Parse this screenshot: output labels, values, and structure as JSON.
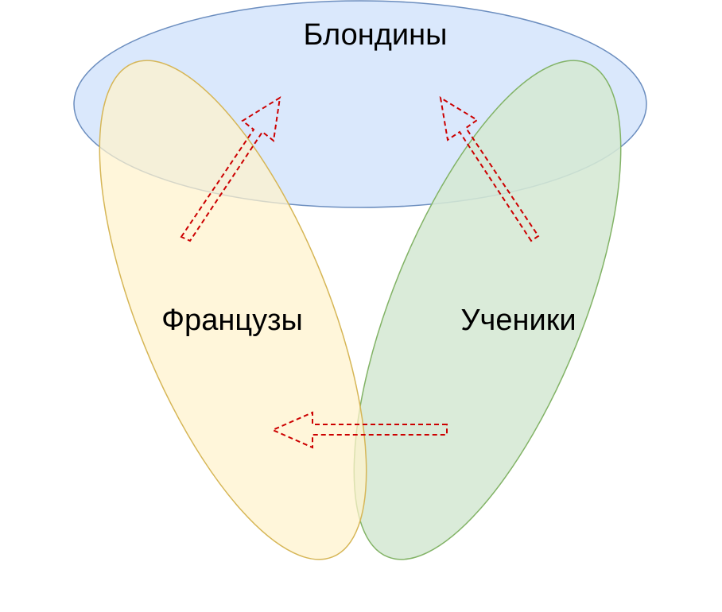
{
  "sets": {
    "blondes": {
      "label": "Блондины",
      "fill": "#dae8fc",
      "stroke": "#6c8ebf"
    },
    "students": {
      "label": "Ученики",
      "fill": "#d5e8d4",
      "stroke": "#82b366"
    },
    "french": {
      "label": "Французы",
      "fill": "#fff2cc",
      "stroke": "#d6b656"
    }
  },
  "arrows": {
    "color": "#cc0000",
    "style": "dashed"
  }
}
